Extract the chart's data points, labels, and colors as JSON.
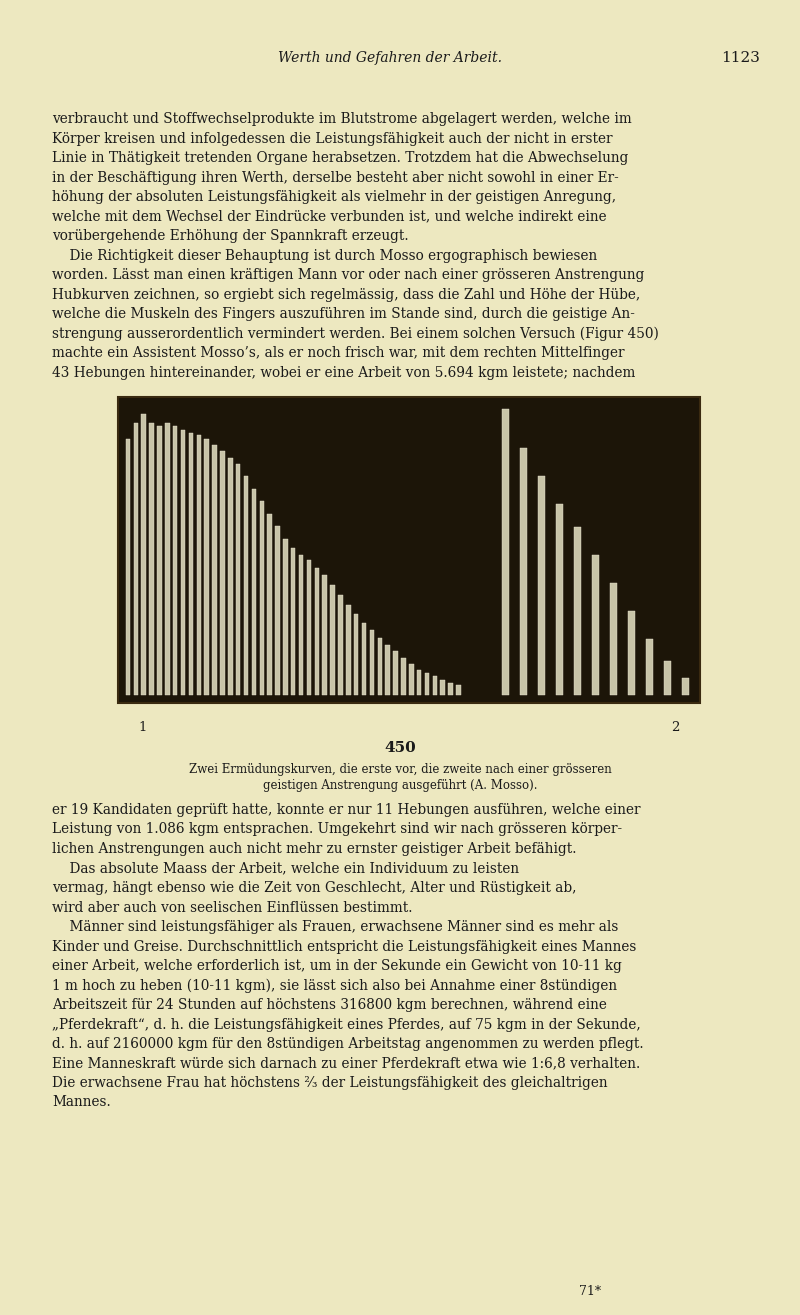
{
  "background_color": "#ede8c0",
  "page_width": 8.0,
  "page_height": 13.15,
  "header_title": "Werth und Gefahren der Arbeit.",
  "header_page": "1123",
  "footer_text": "71*",
  "figure_number": "450",
  "figure_label_1": "1",
  "figure_label_2": "2",
  "figure_caption": "Zwei Ermüdungskurven, die erste vor, die zweite nach einer grösseren",
  "figure_caption2": "geistigen Anstrengung ausgeführt (A. Mosso).",
  "text_color": "#1a1a1a",
  "text_blocks": [
    "verbraucht und Stoffwechselprodukte im Blutstrome abgelagert werden, welche im",
    "Körper kreisen und infolgedessen die Leistungsfähigkeit auch der nicht in erster",
    "Linie in Thätigkeit tretenden Organe herabsetzen. Trotzdem hat die Abwechselung",
    "in der Beschäftigung ihren Werth, derselbe besteht aber nicht sowohl in einer Er-",
    "höhung der absoluten Leistungsfähigkeit als vielmehr in der geistigen Anregung,",
    "welche mit dem Wechsel der Eindrücke verbunden ist, und welche indirekt eine",
    "vorübergehende Erhöhung der Spannkraft erzeugt.",
    "    Die Richtigkeit dieser Behauptung ist durch Mosso ergographisch bewiesen",
    "worden. Lässt man einen kräftigen Mann vor oder nach einer grösseren Anstrengung",
    "Hubkurven zeichnen, so ergiebt sich regelmässig, dass die Zahl und Höhe der Hübe,",
    "welche die Muskeln des Fingers auszuführen im Stande sind, durch die geistige An-",
    "strengung ausserordentlich vermindert werden. Bei einem solchen Versuch (Figur 450)",
    "machte ein Assistent Mosso’s, als er noch frisch war, mit dem rechten Mittelfinger",
    "43 Hebungen hintereinander, wobei er eine Arbeit von 5.694 kgm leistete; nachdem"
  ],
  "text_blocks2": [
    "er 19 Kandidaten geprüft hatte, konnte er nur 11 Hebungen ausführen, welche einer",
    "Leistung von 1.086 kgm entsprachen. Umgekehrt sind wir nach grösseren körper-",
    "lichen Anstrengungen auch nicht mehr zu ernster geistiger Arbeit befähigt.",
    "    Das absolute Maass der Arbeit, welche ein Individuum zu leisten",
    "vermag, hängt ebenso wie die Zeit von Geschlecht, Alter und Rüstigkeit ab,",
    "wird aber auch von seelischen Einflüssen bestimmt.",
    "    Männer sind leistungsfähiger als Frauen, erwachsene Männer sind es mehr als",
    "Kinder und Greise. Durchschnittlich entspricht die Leistungsfähigkeit eines Mannes",
    "einer Arbeit, welche erforderlich ist, um in der Sekunde ein Gewicht von 10-11 kg",
    "1 m hoch zu heben (10-11 kgm), sie lässt sich also bei Annahme einer 8stündigen",
    "Arbeitszeit für 24 Stunden auf höchstens 316800 kgm berechnen, während eine",
    "„Pferdekraft“, d. h. die Leistungsfähigkeit eines Pferdes, auf 75 kgm in der Sekunde,",
    "d. h. auf 2160000 kgm für den 8stündigen Arbeitstag angenommen zu werden pflegt.",
    "Eine Manneskraft würde sich darnach zu einer Pferdekraft etwa wie 1:6,8 verhalten.",
    "Die erwachsene Frau hat höchstens ²⁄₃ der Leistungsfähigkeit des gleichaltrigen",
    "Mannes."
  ],
  "ergograph_series1_count": 43,
  "ergograph_series2_count": 11,
  "image_box_color": "#1c1508"
}
